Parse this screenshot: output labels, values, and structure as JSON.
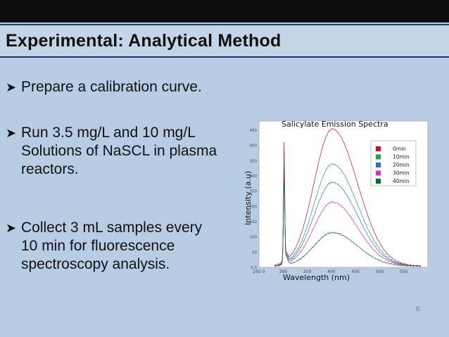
{
  "slide": {
    "title": "Experimental:  Analytical Method",
    "bullets": [
      {
        "lines": [
          "Prepare a calibration curve."
        ]
      },
      {
        "lines": [
          "Run 3.5 mg/L and 10 mg/L",
          "Solutions of NaSCL in plasma",
          "reactors."
        ]
      },
      {
        "lines": [
          "Collect 3 mL samples every",
          "10 min for fluorescence",
          "spectroscopy analysis."
        ]
      }
    ],
    "page_number": "6"
  },
  "chart_data": {
    "type": "line",
    "title": "Salicylate Emission Spectra",
    "xlabel": "Wavelength (nm)",
    "ylabel": "Intensity (a.u)",
    "xlim": [
      250,
      600
    ],
    "x_ticks": [
      "250 0",
      "300",
      "350",
      "400",
      "450",
      "500",
      "550"
    ],
    "y_ticks": [
      "0.3",
      "50",
      "100",
      "150",
      "200",
      "250",
      "300",
      "350",
      "400",
      "450"
    ],
    "legend_placement": "top-right",
    "series": [
      {
        "name": "0min",
        "color": "#e4003a",
        "peak": 450
      },
      {
        "name": "10min",
        "color": "#19a64b",
        "peak": 335
      },
      {
        "name": "20min",
        "color": "#2b6fd6",
        "peak": 275
      },
      {
        "name": "30min",
        "color": "#d92ad0",
        "peak": 210
      },
      {
        "name": "40min",
        "color": "#0c6b22",
        "peak": 110
      }
    ]
  }
}
